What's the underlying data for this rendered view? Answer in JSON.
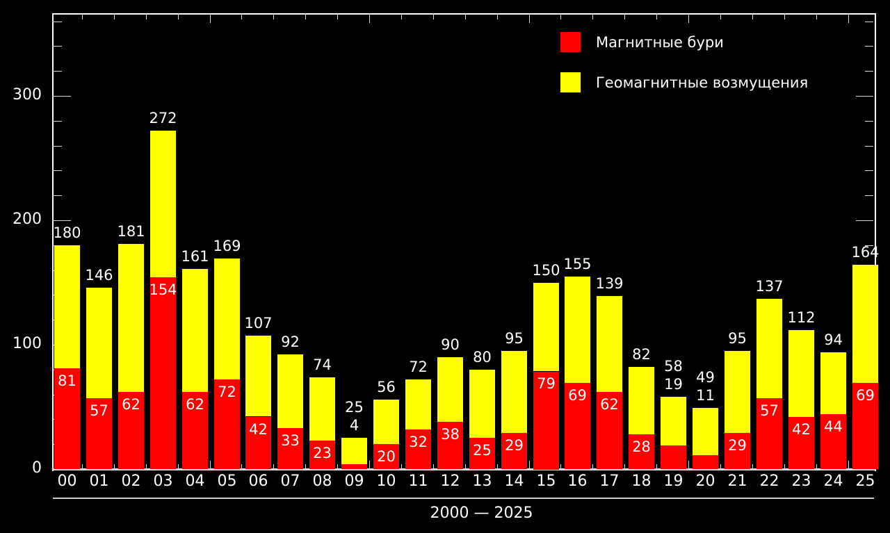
{
  "chart_data": {
    "type": "bar",
    "stacked": true,
    "title": "",
    "xlabel": "2000 — 2025",
    "ylabel": "",
    "ylim": [
      0,
      360
    ],
    "yticks": [
      0,
      100,
      200,
      300
    ],
    "minor_tick_step": 20,
    "grid": false,
    "legend_position": "top-right",
    "categories": [
      "00",
      "01",
      "02",
      "03",
      "04",
      "05",
      "06",
      "07",
      "08",
      "09",
      "10",
      "11",
      "12",
      "13",
      "14",
      "15",
      "16",
      "17",
      "18",
      "19",
      "20",
      "21",
      "22",
      "23",
      "24",
      "25"
    ],
    "series": [
      {
        "name": "Магнитные бури",
        "color": "#ff0000",
        "values": [
          81,
          57,
          62,
          154,
          62,
          72,
          42,
          33,
          23,
          4,
          20,
          32,
          38,
          25,
          29,
          79,
          69,
          62,
          28,
          19,
          11,
          29,
          57,
          42,
          44,
          69
        ]
      },
      {
        "name": "Геомагнитные возмущения",
        "color": "#ffff00",
        "values": [
          99,
          89,
          119,
          118,
          99,
          97,
          65,
          59,
          51,
          21,
          36,
          40,
          52,
          55,
          66,
          71,
          86,
          77,
          54,
          39,
          38,
          66,
          80,
          70,
          50,
          95
        ]
      }
    ],
    "totals": [
      180,
      146,
      181,
      272,
      161,
      169,
      107,
      92,
      74,
      25,
      56,
      72,
      90,
      80,
      95,
      150,
      155,
      139,
      82,
      58,
      49,
      95,
      137,
      112,
      94,
      164
    ],
    "annotations": [
      "Years 09, 19, 20: storm counts (4, 19, 11) shown above bar below total"
    ]
  },
  "legend": {
    "storms": "Магнитные бури",
    "disturbances": "Геомагнитные возмущения"
  },
  "axis": {
    "y_labels": [
      "0",
      "100",
      "200",
      "300"
    ],
    "range_label": "2000 — 2025"
  },
  "colors": {
    "storms": "#ff0000",
    "disturbances": "#ffff00",
    "background": "#000000",
    "axis": "#ffffff"
  }
}
